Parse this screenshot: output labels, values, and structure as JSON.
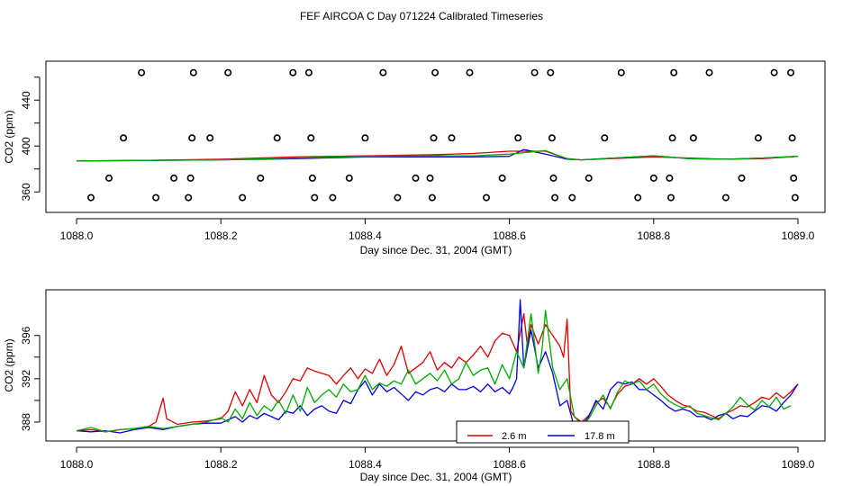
{
  "chart_data": [
    {
      "type": "line",
      "title": "FEF AIRCOA C  Day 071224  Calibrated Timeseries",
      "xlabel": "Day since Dec. 31, 2004 (GMT)",
      "ylabel": "CO2 (ppm)",
      "xlim": [
        1088.0,
        1089.0
      ],
      "ylim": [
        350,
        470
      ],
      "xticks": [
        1088.0,
        1088.2,
        1088.4,
        1088.6,
        1088.8,
        1089.0
      ],
      "xtick_labels": [
        "1088.0",
        "1088.2",
        "1088.4",
        "1088.6",
        "1088.8",
        "1089.0"
      ],
      "yticks": [
        360,
        380,
        400,
        420,
        440,
        460
      ],
      "ytick_labels": [
        "360",
        "",
        "400",
        "",
        "440",
        ""
      ],
      "series": [
        {
          "name": "2.6 m",
          "color": "#dd0000",
          "x": [
            1088.0,
            1088.1,
            1088.2,
            1088.3,
            1088.4,
            1088.5,
            1088.55,
            1088.6,
            1088.65,
            1088.68,
            1088.7,
            1088.8,
            1088.85,
            1088.9,
            1088.95,
            1089.0
          ],
          "values": [
            387,
            387.5,
            388.5,
            390.5,
            391.5,
            392.5,
            393.5,
            395.5,
            395.5,
            389,
            388,
            390.5,
            389.5,
            388.5,
            389,
            391
          ]
        },
        {
          "name": "17.8 m",
          "color": "#0000dd",
          "x": [
            1088.0,
            1088.1,
            1088.2,
            1088.3,
            1088.4,
            1088.5,
            1088.55,
            1088.6,
            1088.62,
            1088.65,
            1088.68,
            1088.7,
            1088.8,
            1088.85,
            1088.9,
            1088.95,
            1089.0
          ],
          "values": [
            387,
            387.5,
            388,
            389,
            390.5,
            390.5,
            390.5,
            391,
            397,
            393,
            388.5,
            388,
            391.5,
            389,
            388.5,
            389.5,
            391
          ]
        },
        {
          "name": "green",
          "color": "#00aa00",
          "x": [
            1088.0,
            1088.1,
            1088.2,
            1088.3,
            1088.4,
            1088.5,
            1088.55,
            1088.6,
            1088.65,
            1088.68,
            1088.7,
            1088.8,
            1088.85,
            1088.9,
            1088.95,
            1089.0
          ],
          "values": [
            387,
            387.5,
            388,
            389.5,
            391,
            391.5,
            391.5,
            393,
            396,
            389,
            388,
            391.5,
            389,
            388.5,
            389.5,
            391
          ]
        }
      ],
      "markers": {
        "symbol": "o",
        "points": [
          {
            "x": 1088.02,
            "y": 355
          },
          {
            "x": 1088.045,
            "y": 372
          },
          {
            "x": 1088.065,
            "y": 407
          },
          {
            "x": 1088.09,
            "y": 464
          },
          {
            "x": 1088.11,
            "y": 355
          },
          {
            "x": 1088.135,
            "y": 372
          },
          {
            "x": 1088.155,
            "y": 355
          },
          {
            "x": 1088.158,
            "y": 372
          },
          {
            "x": 1088.16,
            "y": 407
          },
          {
            "x": 1088.162,
            "y": 464
          },
          {
            "x": 1088.185,
            "y": 407
          },
          {
            "x": 1088.21,
            "y": 464
          },
          {
            "x": 1088.23,
            "y": 355
          },
          {
            "x": 1088.255,
            "y": 372
          },
          {
            "x": 1088.278,
            "y": 407
          },
          {
            "x": 1088.3,
            "y": 464
          },
          {
            "x": 1088.322,
            "y": 464
          },
          {
            "x": 1088.325,
            "y": 407
          },
          {
            "x": 1088.327,
            "y": 372
          },
          {
            "x": 1088.33,
            "y": 355
          },
          {
            "x": 1088.355,
            "y": 355
          },
          {
            "x": 1088.378,
            "y": 372
          },
          {
            "x": 1088.4,
            "y": 407
          },
          {
            "x": 1088.425,
            "y": 464
          },
          {
            "x": 1088.445,
            "y": 355
          },
          {
            "x": 1088.47,
            "y": 372
          },
          {
            "x": 1088.49,
            "y": 372
          },
          {
            "x": 1088.493,
            "y": 355
          },
          {
            "x": 1088.495,
            "y": 407
          },
          {
            "x": 1088.497,
            "y": 464
          },
          {
            "x": 1088.52,
            "y": 407
          },
          {
            "x": 1088.545,
            "y": 464
          },
          {
            "x": 1088.568,
            "y": 355
          },
          {
            "x": 1088.59,
            "y": 372
          },
          {
            "x": 1088.612,
            "y": 407
          },
          {
            "x": 1088.635,
            "y": 464
          },
          {
            "x": 1088.657,
            "y": 464
          },
          {
            "x": 1088.659,
            "y": 407
          },
          {
            "x": 1088.661,
            "y": 372
          },
          {
            "x": 1088.663,
            "y": 355
          },
          {
            "x": 1088.687,
            "y": 355
          },
          {
            "x": 1088.71,
            "y": 372
          },
          {
            "x": 1088.732,
            "y": 407
          },
          {
            "x": 1088.755,
            "y": 464
          },
          {
            "x": 1088.778,
            "y": 355
          },
          {
            "x": 1088.8,
            "y": 372
          },
          {
            "x": 1088.822,
            "y": 372
          },
          {
            "x": 1088.824,
            "y": 355
          },
          {
            "x": 1088.826,
            "y": 407
          },
          {
            "x": 1088.828,
            "y": 464
          },
          {
            "x": 1088.855,
            "y": 407
          },
          {
            "x": 1088.877,
            "y": 464
          },
          {
            "x": 1088.9,
            "y": 355
          },
          {
            "x": 1088.922,
            "y": 372
          },
          {
            "x": 1088.945,
            "y": 407
          },
          {
            "x": 1088.967,
            "y": 464
          },
          {
            "x": 1088.99,
            "y": 464
          },
          {
            "x": 1088.992,
            "y": 407
          },
          {
            "x": 1088.994,
            "y": 372
          },
          {
            "x": 1088.996,
            "y": 355
          }
        ]
      }
    },
    {
      "type": "line",
      "xlabel": "Day since Dec. 31, 2004 (GMT)",
      "ylabel": "CO2 (ppm)",
      "xlim": [
        1088.0,
        1089.0
      ],
      "ylim": [
        386.5,
        399.8
      ],
      "xticks": [
        1088.0,
        1088.2,
        1088.4,
        1088.6,
        1088.8,
        1089.0
      ],
      "xtick_labels": [
        "1088.0",
        "1088.2",
        "1088.4",
        "1088.6",
        "1088.8",
        "1089.0"
      ],
      "yticks": [
        388,
        390,
        392,
        394,
        396
      ],
      "ytick_labels": [
        "388",
        "",
        "392",
        "",
        "396"
      ],
      "legend": {
        "position": "bottom-center",
        "entries": [
          "2.6 m",
          "17.8 m"
        ]
      },
      "series": [
        {
          "name": "2.6 m",
          "color": "#dd0000",
          "x": [
            1088.0,
            1088.02,
            1088.04,
            1088.06,
            1088.08,
            1088.1,
            1088.11,
            1088.12,
            1088.125,
            1088.14,
            1088.16,
            1088.18,
            1088.2,
            1088.21,
            1088.22,
            1088.23,
            1088.24,
            1088.25,
            1088.26,
            1088.27,
            1088.28,
            1088.29,
            1088.3,
            1088.31,
            1088.32,
            1088.33,
            1088.34,
            1088.35,
            1088.36,
            1088.37,
            1088.38,
            1088.39,
            1088.4,
            1088.41,
            1088.42,
            1088.43,
            1088.44,
            1088.45,
            1088.46,
            1088.47,
            1088.48,
            1088.49,
            1088.5,
            1088.51,
            1088.52,
            1088.53,
            1088.54,
            1088.55,
            1088.56,
            1088.57,
            1088.58,
            1088.59,
            1088.6,
            1088.61,
            1088.62,
            1088.625,
            1088.63,
            1088.64,
            1088.65,
            1088.66,
            1088.67,
            1088.675,
            1088.68,
            1088.685,
            1088.69,
            1088.7,
            1088.71,
            1088.72,
            1088.73,
            1088.74,
            1088.75,
            1088.76,
            1088.77,
            1088.78,
            1088.79,
            1088.8,
            1088.81,
            1088.82,
            1088.83,
            1088.84,
            1088.85,
            1088.86,
            1088.87,
            1088.88,
            1088.89,
            1088.9,
            1088.91,
            1088.92,
            1088.93,
            1088.94,
            1088.95,
            1088.96,
            1088.97,
            1088.98,
            1088.99,
            1089.0
          ],
          "values": [
            387.2,
            387.3,
            387.1,
            387.3,
            387.4,
            387.6,
            388.0,
            390.2,
            388.3,
            387.8,
            388.0,
            388.1,
            388.3,
            389.0,
            390.8,
            389.5,
            391.0,
            389.8,
            392.3,
            390.5,
            389.8,
            390.8,
            392.0,
            391.8,
            393.0,
            392.7,
            392.5,
            392.3,
            391.5,
            392.3,
            393.0,
            392.0,
            392.9,
            392.5,
            393.8,
            392.3,
            393.3,
            395.0,
            392.5,
            393.0,
            393.5,
            394.5,
            392.8,
            393.5,
            393.0,
            394.0,
            393.5,
            394.2,
            395.0,
            394.0,
            395.5,
            396.2,
            396.0,
            394.5,
            398.0,
            395.0,
            397.0,
            395.2,
            397.0,
            396.0,
            395.0,
            394.0,
            397.5,
            389.0,
            388.5,
            388.0,
            388.6,
            389.8,
            390.2,
            389.3,
            390.6,
            391.3,
            391.5,
            392.0,
            391.5,
            392.0,
            391.3,
            390.5,
            390.0,
            389.6,
            389.4,
            389.0,
            388.9,
            388.6,
            388.3,
            388.8,
            389.1,
            389.5,
            389.4,
            389.8,
            390.3,
            390.1,
            390.7,
            390.2,
            390.8,
            391.5
          ]
        },
        {
          "name": "17.8 m",
          "color": "#0000dd",
          "x": [
            1088.0,
            1088.02,
            1088.04,
            1088.06,
            1088.08,
            1088.1,
            1088.12,
            1088.14,
            1088.16,
            1088.18,
            1088.2,
            1088.21,
            1088.22,
            1088.23,
            1088.24,
            1088.25,
            1088.26,
            1088.27,
            1088.28,
            1088.29,
            1088.3,
            1088.31,
            1088.32,
            1088.33,
            1088.34,
            1088.35,
            1088.36,
            1088.37,
            1088.38,
            1088.39,
            1088.4,
            1088.41,
            1088.42,
            1088.43,
            1088.44,
            1088.45,
            1088.46,
            1088.47,
            1088.48,
            1088.49,
            1088.5,
            1088.51,
            1088.52,
            1088.53,
            1088.54,
            1088.55,
            1088.56,
            1088.57,
            1088.58,
            1088.59,
            1088.6,
            1088.605,
            1088.61,
            1088.615,
            1088.62,
            1088.63,
            1088.64,
            1088.65,
            1088.66,
            1088.67,
            1088.68,
            1088.69,
            1088.7,
            1088.71,
            1088.72,
            1088.73,
            1088.74,
            1088.75,
            1088.76,
            1088.77,
            1088.78,
            1088.79,
            1088.8,
            1088.81,
            1088.82,
            1088.83,
            1088.84,
            1088.85,
            1088.86,
            1088.87,
            1088.88,
            1088.89,
            1088.9,
            1088.91,
            1088.92,
            1088.93,
            1088.94,
            1088.95,
            1088.96,
            1088.97,
            1088.98,
            1088.99,
            1089.0
          ],
          "values": [
            387.2,
            387.1,
            387.2,
            387.0,
            387.3,
            387.5,
            387.3,
            387.6,
            387.8,
            387.9,
            387.9,
            388.2,
            388.5,
            388.0,
            388.6,
            388.3,
            388.8,
            388.5,
            388.2,
            389.0,
            388.8,
            389.5,
            388.6,
            389.2,
            389.5,
            389.0,
            388.8,
            390.0,
            389.7,
            391.0,
            391.8,
            390.5,
            391.5,
            390.8,
            391.2,
            390.6,
            390.0,
            390.8,
            390.5,
            391.0,
            391.2,
            390.8,
            391.5,
            391.0,
            391.0,
            391.3,
            390.8,
            391.5,
            390.8,
            391.2,
            390.6,
            391.2,
            392.0,
            399.3,
            393.0,
            396.5,
            393.0,
            394.5,
            392.5,
            389.5,
            390.0,
            387.5,
            387.7,
            388.5,
            390.0,
            389.2,
            391.0,
            391.7,
            391.5,
            391.7,
            391.0,
            391.0,
            390.5,
            390.0,
            389.4,
            389.0,
            389.2,
            389.0,
            388.5,
            388.5,
            388.2,
            388.6,
            388.8,
            388.3,
            388.6,
            388.5,
            389.0,
            389.5,
            389.4,
            389.0,
            389.8,
            390.5,
            391.5
          ]
        },
        {
          "name": "green",
          "color": "#00aa00",
          "x": [
            1088.0,
            1088.02,
            1088.04,
            1088.06,
            1088.08,
            1088.1,
            1088.12,
            1088.14,
            1088.16,
            1088.18,
            1088.2,
            1088.21,
            1088.22,
            1088.23,
            1088.24,
            1088.25,
            1088.26,
            1088.27,
            1088.28,
            1088.29,
            1088.3,
            1088.31,
            1088.32,
            1088.33,
            1088.34,
            1088.35,
            1088.36,
            1088.37,
            1088.38,
            1088.39,
            1088.4,
            1088.41,
            1088.42,
            1088.43,
            1088.44,
            1088.45,
            1088.46,
            1088.47,
            1088.48,
            1088.49,
            1088.5,
            1088.51,
            1088.52,
            1088.53,
            1088.54,
            1088.55,
            1088.56,
            1088.57,
            1088.58,
            1088.59,
            1088.6,
            1088.61,
            1088.62,
            1088.63,
            1088.64,
            1088.645,
            1088.65,
            1088.66,
            1088.67,
            1088.68,
            1088.69,
            1088.7,
            1088.71,
            1088.72,
            1088.73,
            1088.74,
            1088.75,
            1088.76,
            1088.77,
            1088.78,
            1088.79,
            1088.8,
            1088.81,
            1088.82,
            1088.83,
            1088.84,
            1088.85,
            1088.86,
            1088.87,
            1088.88,
            1088.89,
            1088.9,
            1088.91,
            1088.92,
            1088.93,
            1088.94,
            1088.95,
            1088.96,
            1088.97,
            1088.98,
            1088.99
          ],
          "values": [
            387.2,
            387.5,
            387.1,
            387.3,
            387.4,
            387.6,
            387.4,
            387.6,
            387.8,
            388.0,
            388.4,
            388.0,
            389.2,
            388.3,
            389.8,
            388.6,
            389.5,
            389.0,
            390.0,
            388.8,
            390.5,
            389.0,
            391.2,
            389.8,
            390.5,
            391.0,
            390.3,
            391.5,
            390.8,
            391.0,
            392.3,
            391.0,
            391.6,
            391.3,
            391.8,
            391.5,
            392.8,
            391.5,
            392.0,
            392.5,
            391.8,
            392.8,
            391.5,
            392.0,
            393.5,
            392.3,
            392.8,
            393.0,
            391.5,
            393.3,
            392.0,
            394.5,
            393.0,
            398.0,
            392.5,
            394.5,
            398.3,
            393.0,
            391.0,
            392.0,
            388.5,
            387.8,
            388.3,
            389.5,
            390.5,
            389.2,
            390.8,
            391.8,
            391.5,
            391.8,
            391.0,
            391.5,
            390.6,
            390.0,
            389.6,
            389.3,
            389.5,
            388.8,
            388.6,
            388.4,
            388.2,
            388.8,
            389.4,
            390.3,
            389.6,
            389.1,
            390.0,
            389.4,
            390.3,
            389.2,
            389.5
          ]
        }
      ]
    }
  ]
}
